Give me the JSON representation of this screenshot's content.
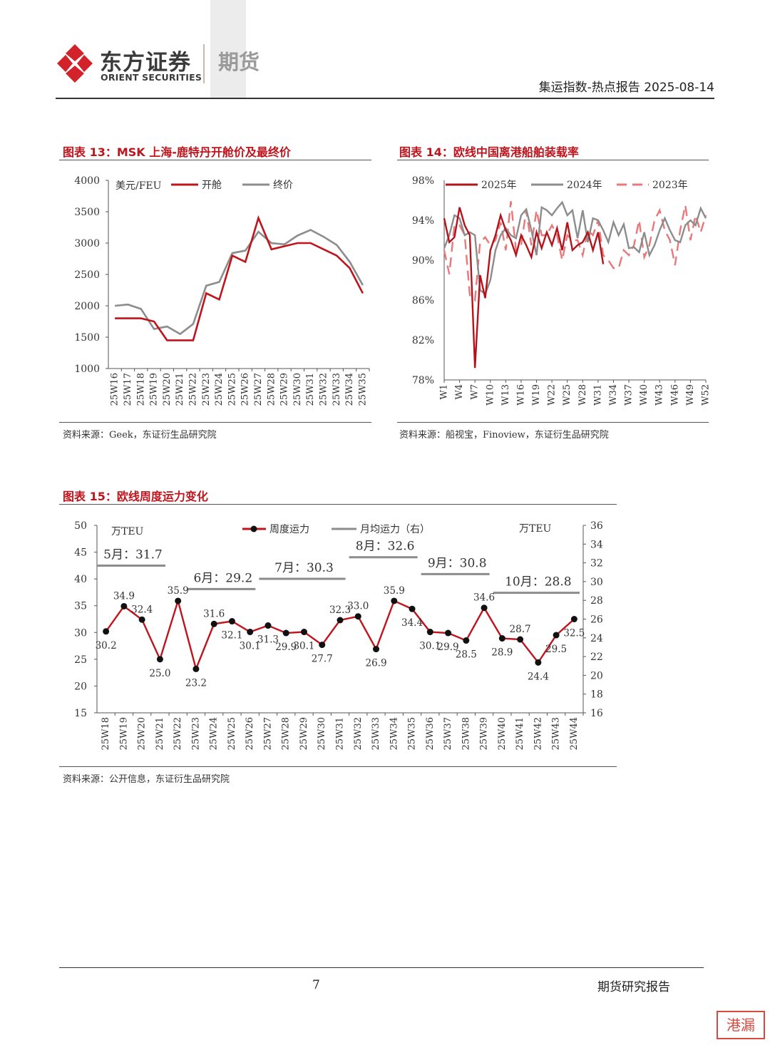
{
  "header": {
    "brand_cn": "东方证券",
    "brand_en": "ORIENT SECURITIES",
    "division": "期货",
    "report_title": "集运指数-热点报告 2025-08-14",
    "logo_color": "#d2232a"
  },
  "figures": [
    {
      "title": "图表 13：MSK 上海-鹿特丹开舱价及最终价",
      "source": "资料来源：Geek，东证衍生品研究院"
    },
    {
      "title": "图表 14：欧线中国离港船舶装载率",
      "source": "资料来源：船视宝，Finoview，东证衍生品研究院"
    },
    {
      "title": "图表 15：欧线周度运力变化",
      "source": "资料来源：公开信息，东证衍生品研究院"
    }
  ],
  "chart_data": [
    {
      "type": "line",
      "unit_label": "美元/FEU",
      "categories": [
        "25W16",
        "25W17",
        "25W18",
        "25W19",
        "25W20",
        "25W21",
        "25W22",
        "25W23",
        "25W24",
        "25W25",
        "25W26",
        "25W27",
        "25W28",
        "25W29",
        "25W30",
        "25W31",
        "25W32",
        "25W33",
        "25W34",
        "25W35"
      ],
      "ylim": [
        1000,
        4000
      ],
      "yticks": [
        "1000",
        "1500",
        "2000",
        "2500",
        "3000",
        "3500",
        "4000"
      ],
      "series": [
        {
          "name": "开舱",
          "color": "#c0141c",
          "values": [
            1800,
            1800,
            1800,
            1750,
            1450,
            1450,
            1450,
            2200,
            2100,
            2800,
            2700,
            3400,
            2900,
            2950,
            3000,
            3000,
            2900,
            2800,
            2600,
            2200
          ]
        },
        {
          "name": "终价",
          "color": "#8c8c8c",
          "values": [
            2000,
            2020,
            1950,
            1630,
            1670,
            1550,
            1710,
            2320,
            2380,
            2840,
            2880,
            3180,
            3000,
            2980,
            3120,
            3210,
            3100,
            2970,
            2700,
            2330
          ]
        }
      ]
    },
    {
      "type": "line",
      "ylim": [
        78,
        98
      ],
      "yticks": [
        "78%",
        "82%",
        "86%",
        "90%",
        "94%",
        "98%"
      ],
      "xticks": [
        "W1",
        "W4",
        "W7",
        "W10",
        "W13",
        "W16",
        "W19",
        "W22",
        "W25",
        "W28",
        "W31",
        "W34",
        "W37",
        "W40",
        "W43",
        "W46",
        "W49",
        "W52"
      ],
      "weeks": 52,
      "series": [
        {
          "name": "2025年",
          "color": "#b3141c",
          "dash": false,
          "values": [
            94.2,
            91.8,
            92.3,
            95.3,
            93.5,
            92.5,
            79.2,
            88.5,
            86.2,
            91,
            92.5,
            94.5,
            93,
            92,
            90.5,
            92.5,
            91.5,
            90.3,
            92.8,
            91.2,
            92.8,
            91.5,
            93.2,
            91,
            93.8,
            91,
            91.5,
            91.8,
            92.8,
            91,
            92.8,
            89.6
          ]
        },
        {
          "name": "2024年",
          "color": "#8c8c8c",
          "dash": false,
          "values": [
            91.2,
            92.5,
            94.5,
            94.2,
            92.5,
            92.8,
            92.5,
            87,
            86.6,
            88,
            91,
            92.5,
            93.2,
            92.5,
            92.2,
            94.5,
            95.1,
            93,
            90.5,
            95.3,
            95,
            94.5,
            95.2,
            95.8,
            94.5,
            95,
            92.2,
            95,
            91.8,
            94.2,
            94,
            93,
            91.8,
            93.8,
            92.5,
            93.6,
            91.2,
            91.3,
            90.8,
            92.8,
            90.5,
            91.5,
            93,
            94.2,
            93,
            92,
            91.8,
            93.5,
            94,
            93.5,
            95.2,
            94.2
          ]
        },
        {
          "name": "2023年",
          "color": "#e8787a",
          "dash": true,
          "values": [
            91,
            88.6,
            93.5,
            93.5,
            92.5,
            86.5,
            86,
            91.8,
            92.3,
            91.5,
            92,
            93.8,
            91,
            95.9,
            91,
            91.5,
            95,
            91.5,
            95,
            92.5,
            92.5,
            93.5,
            92.5,
            90,
            92.5,
            92,
            92,
            90.5,
            93,
            92.5,
            94,
            90.5,
            90,
            89.2,
            89.2,
            91,
            90.5,
            91.5,
            94,
            90.3,
            91.5,
            94,
            95,
            93,
            92,
            89.5,
            93,
            95.5,
            92,
            94.5,
            92.8,
            94.5
          ]
        }
      ]
    },
    {
      "type": "line",
      "unit_left": "万TEU",
      "unit_right": "万TEU",
      "categories": [
        "25W18",
        "25W19",
        "25W20",
        "25W21",
        "25W22",
        "25W23",
        "25W24",
        "25W25",
        "25W26",
        "25W27",
        "25W28",
        "25W29",
        "25W30",
        "25W31",
        "25W32",
        "25W33",
        "25W34",
        "25W35",
        "25W36",
        "25W37",
        "25W38",
        "25W39",
        "25W40",
        "25W41",
        "25W42",
        "25W43",
        "25W44"
      ],
      "ylim_left": [
        15,
        50
      ],
      "yticks_left": [
        "15",
        "20",
        "25",
        "30",
        "35",
        "40",
        "45",
        "50"
      ],
      "ylim_right": [
        16,
        36
      ],
      "yticks_right": [
        "16",
        "18",
        "20",
        "22",
        "24",
        "26",
        "28",
        "30",
        "32",
        "34",
        "36"
      ],
      "weekly": {
        "name": "周度运力",
        "color": "#c0141c",
        "values": [
          30.2,
          34.9,
          32.4,
          25.0,
          35.9,
          23.2,
          31.6,
          32.1,
          30.1,
          31.3,
          29.9,
          30.1,
          27.7,
          32.3,
          33.0,
          26.9,
          35.9,
          34.4,
          30.1,
          29.9,
          28.5,
          34.6,
          28.9,
          28.7,
          24.4,
          29.5,
          32.5
        ],
        "labels": [
          "30.2",
          "34.9",
          "32.4",
          "25.0",
          "35.9",
          "23.2",
          "31.6",
          "32.1",
          "30.1",
          "31.3",
          "29.9",
          "30.1",
          "27.7",
          "32.3",
          "33.0",
          "26.9",
          "35.9",
          "34.4",
          "30.1",
          "29.9",
          "28.5",
          "34.6",
          "28.9",
          "28.7",
          "24.4",
          "29.5",
          "32.5"
        ]
      },
      "monthly": {
        "name": "月均运力（右）",
        "color": "#8c8c8c",
        "periods": [
          {
            "label": "5月：31.7",
            "value": 31.7,
            "from": "25W18",
            "to": "25W21"
          },
          {
            "label": "6月：29.2",
            "value": 29.2,
            "from": "25W23",
            "to": "25W26"
          },
          {
            "label": "7月：30.3",
            "value": 30.3,
            "from": "25W27",
            "to": "25W31"
          },
          {
            "label": "8月：32.6",
            "value": 32.6,
            "from": "25W32",
            "to": "25W35"
          },
          {
            "label": "9月：30.8",
            "value": 30.8,
            "from": "25W36",
            "to": "25W39"
          },
          {
            "label": "10月：28.8",
            "value": 28.8,
            "from": "25W40",
            "to": "25W44"
          }
        ]
      }
    }
  ],
  "footer": {
    "page": "7",
    "label": "期货研究报告",
    "stamp": "港漏"
  }
}
